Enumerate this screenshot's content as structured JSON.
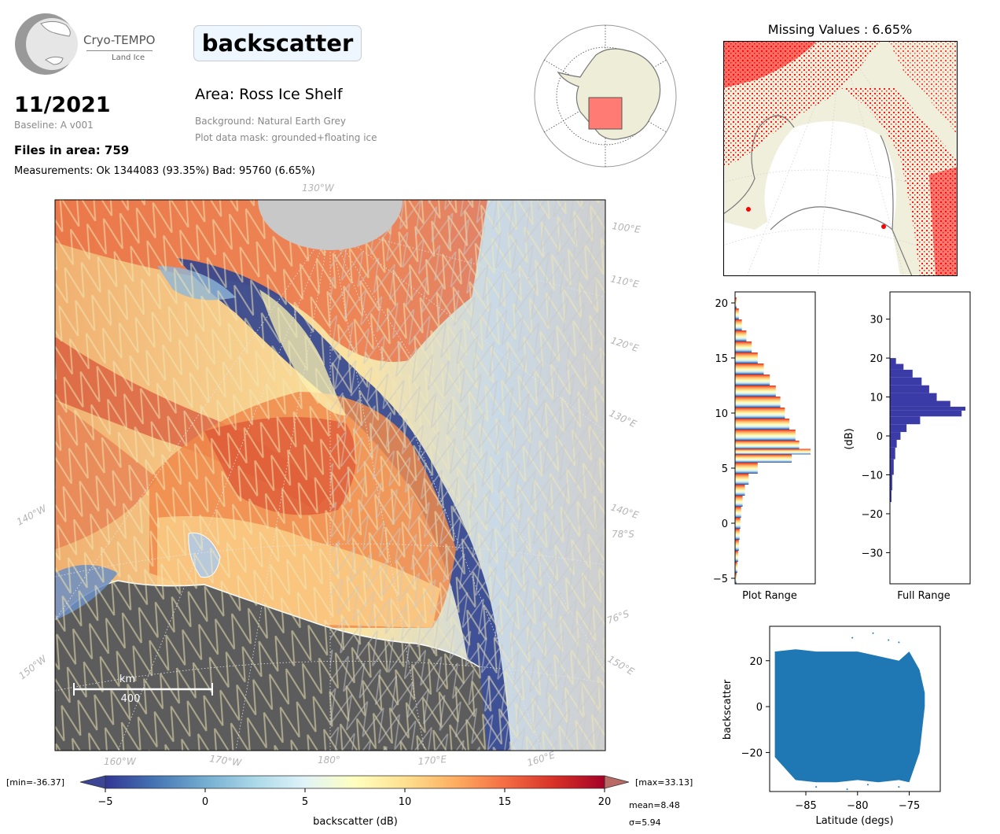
{
  "header": {
    "logo_text": "Cryo-TEMPO",
    "logo_sub": "Land Ice",
    "date": "11/2021",
    "baseline": "Baseline: A v001",
    "files": "Files in area: 759",
    "measurements": "Measurements: Ok 1344083 (93.35%) Bad: 95760 (6.65%)",
    "title": "backscatter",
    "area": "Area: Ross Ice Shelf",
    "background": "Background: Natural Earth Grey",
    "mask": "Plot data mask: grounded+floating ice"
  },
  "map": {
    "lon_labels_top": [
      "130°W"
    ],
    "lon_labels_right": [
      "100°E",
      "110°E",
      "120°E",
      "130°E",
      "140°E",
      "150°E"
    ],
    "lat_labels_right": [
      "78°S",
      "76°S"
    ],
    "lon_labels_left": [
      "140°W",
      "150°W"
    ],
    "lon_labels_bottom": [
      "160°W",
      "170°W",
      "180°",
      "170°E",
      "160°E"
    ],
    "scale_unit": "km",
    "scale_value": "400"
  },
  "colorbar": {
    "label": "backscatter (dB)",
    "min_label": "[min=-36.37]",
    "max_label": "[max=33.13]",
    "ticks": [
      "−5",
      "0",
      "5",
      "10",
      "15",
      "20"
    ],
    "mean": "mean=8.48",
    "sigma": "σ=5.94",
    "colors": [
      "#313695",
      "#4575b4",
      "#74add1",
      "#abd9e9",
      "#e0f3f8",
      "#ffffbf",
      "#fee090",
      "#fdae61",
      "#f46d43",
      "#d73027",
      "#a50026"
    ]
  },
  "missing": {
    "title": "Missing Values : 6.65%"
  },
  "chart_data": [
    {
      "type": "bar",
      "orientation": "horizontal",
      "xlabel": "Plot Range",
      "ylabel": "",
      "ylim": [
        -5.5,
        21
      ],
      "yticks": [
        "−5",
        "0",
        "5",
        "10",
        "15",
        "20"
      ],
      "bin_centers": [
        -5,
        -4,
        -3,
        -2,
        -1,
        0,
        1,
        2,
        3,
        4,
        5,
        6,
        6.5,
        7,
        8,
        9,
        10,
        11,
        12,
        13,
        14,
        15,
        16,
        17,
        18,
        19,
        20
      ],
      "relative_counts": [
        0.02,
        0.03,
        0.04,
        0.05,
        0.06,
        0.07,
        0.08,
        0.1,
        0.13,
        0.18,
        0.3,
        0.75,
        1.0,
        0.85,
        0.8,
        0.72,
        0.66,
        0.6,
        0.54,
        0.46,
        0.38,
        0.3,
        0.22,
        0.15,
        0.09,
        0.05,
        0.02
      ]
    },
    {
      "type": "bar",
      "orientation": "horizontal",
      "xlabel": "Full Range",
      "ylabel": "(dB)",
      "ylim": [
        -38,
        37
      ],
      "yticks": [
        "30",
        "20",
        "10",
        "0",
        "−10",
        "−20",
        "−30"
      ],
      "bin_centers": [
        -16,
        -12,
        -8,
        -4,
        -2,
        0,
        2,
        4,
        6,
        7,
        8,
        10,
        12,
        14,
        16,
        18,
        19
      ],
      "relative_counts": [
        0.02,
        0.03,
        0.05,
        0.07,
        0.09,
        0.14,
        0.22,
        0.4,
        0.95,
        1.0,
        0.8,
        0.62,
        0.52,
        0.42,
        0.3,
        0.18,
        0.08
      ],
      "color": "#3b3ba8"
    },
    {
      "type": "scatter",
      "xlabel": "Latitude (degs)",
      "ylabel": "backscatter",
      "xlim": [
        -88.5,
        -72
      ],
      "ylim": [
        -37,
        35
      ],
      "xticks": [
        "−85",
        "−80",
        "−75"
      ],
      "yticks": [
        "20",
        "0",
        "−20"
      ],
      "color": "#1f77b4",
      "envelope": {
        "lat": [
          -88,
          -86,
          -84,
          -82,
          -80,
          -78,
          -76,
          -75,
          -74,
          -73.5
        ],
        "upper": [
          24,
          25,
          24,
          24,
          24,
          22,
          20,
          24,
          16,
          6
        ],
        "lower": [
          -22,
          -32,
          -33,
          -33,
          -32,
          -33,
          -32,
          -33,
          -20,
          0
        ]
      }
    }
  ]
}
